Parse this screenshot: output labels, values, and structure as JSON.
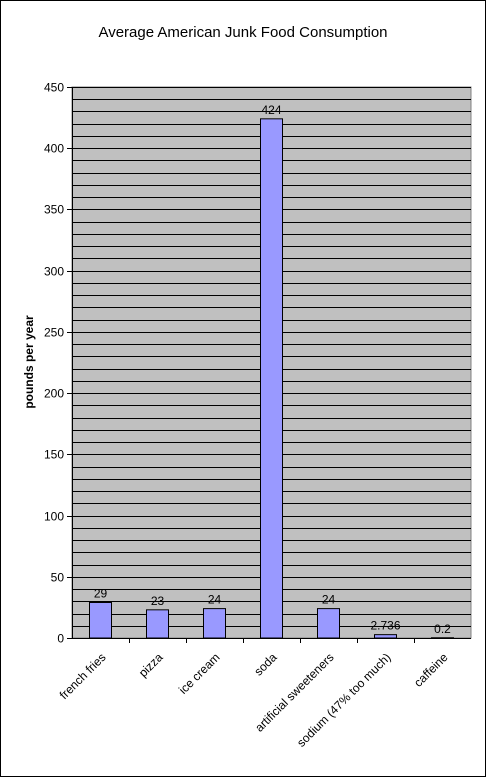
{
  "chart_data": {
    "type": "bar",
    "title": "Average American Junk Food Consumption",
    "xlabel": "",
    "ylabel": "pounds per year",
    "categories": [
      "french fries",
      "pizza",
      "ice cream",
      "soda",
      "artificial sweeteners",
      "sodium (47% too much)",
      "caffeine"
    ],
    "values": [
      29,
      23,
      24,
      424,
      24,
      2.736,
      0.2
    ],
    "data_labels": [
      "29",
      "23",
      "24",
      "424",
      "24",
      "2.736",
      "0.2"
    ],
    "ylim": [
      0,
      450
    ],
    "y_ticks": [
      0,
      50,
      100,
      150,
      200,
      250,
      300,
      350,
      400,
      450
    ],
    "grid": true,
    "legend": "none",
    "colors": {
      "plot_background": "#c0c0c0",
      "bar_fill": "#9999ff",
      "bar_stroke": "#000000",
      "gridline": "#000000"
    }
  }
}
